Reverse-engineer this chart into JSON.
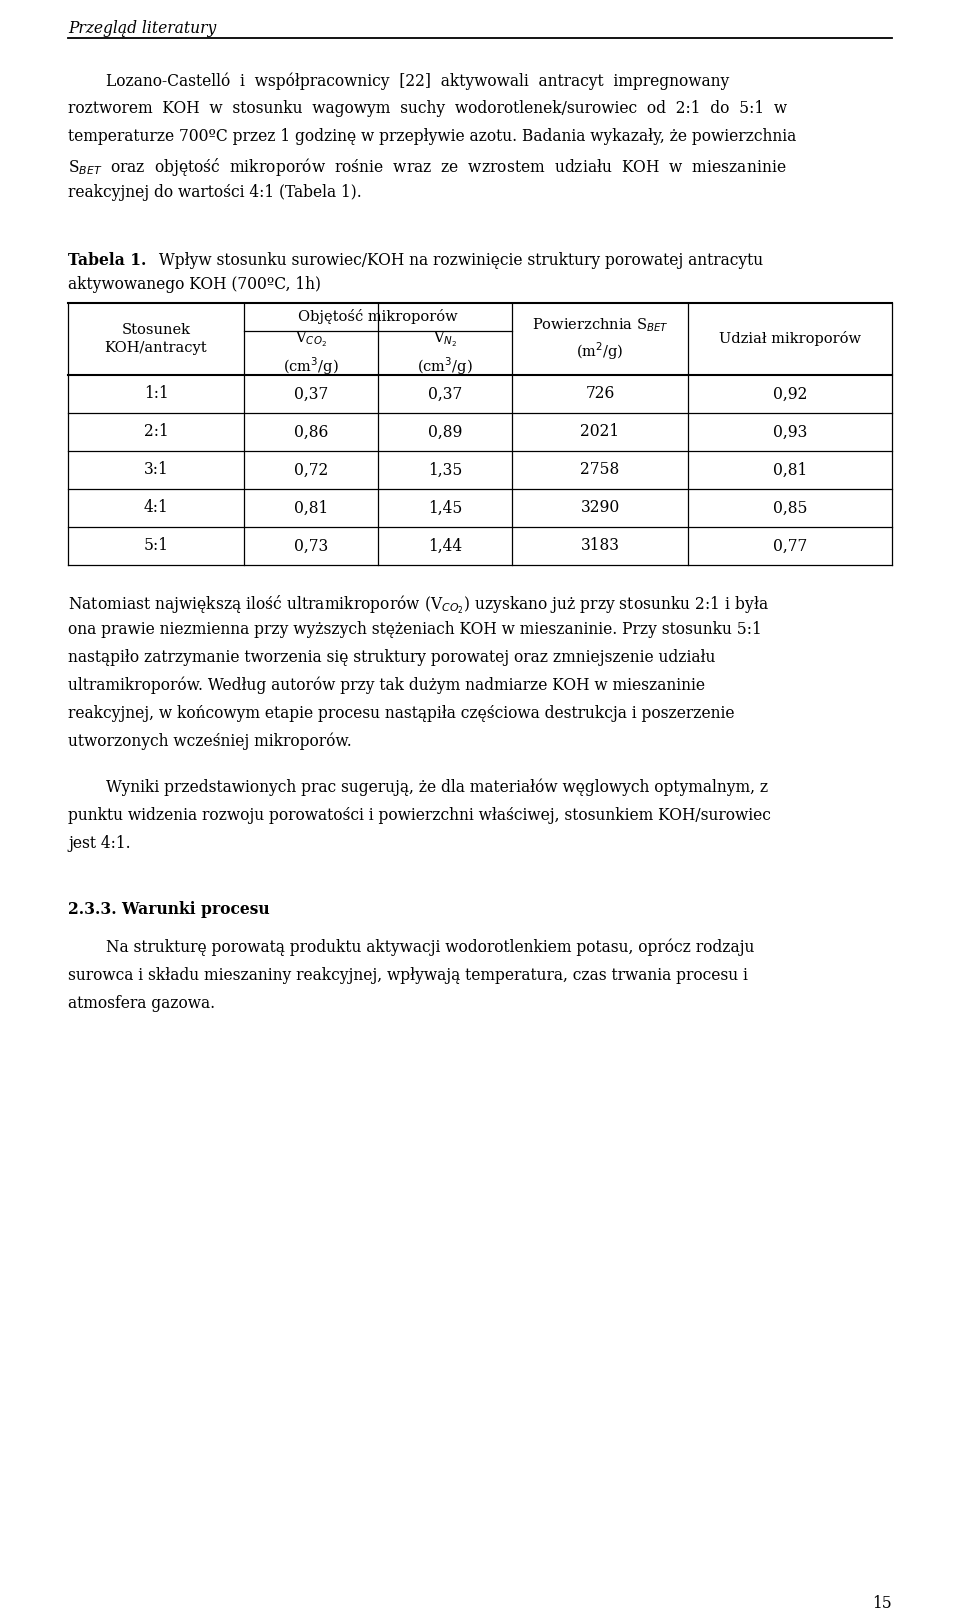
{
  "header": "Przegląd literatury",
  "page_number": "15",
  "table_label_bold": "Tabela 1.",
  "table_label_rest": " Wpływ stosunku surowiec/KOH na rozwinięcie struktury porowatej antracytu",
  "table_label_rest2": "aktywowanego KOH (700ºC, 1h)",
  "table_rows": [
    [
      "1:1",
      "0,37",
      "0,37",
      "726",
      "0,92"
    ],
    [
      "2:1",
      "0,86",
      "0,89",
      "2021",
      "0,93"
    ],
    [
      "3:1",
      "0,72",
      "1,35",
      "2758",
      "0,81"
    ],
    [
      "4:1",
      "0,81",
      "1,45",
      "3290",
      "0,85"
    ],
    [
      "5:1",
      "0,73",
      "1,44",
      "3183",
      "0,77"
    ]
  ],
  "bg_color": "#ffffff",
  "text_color": "#000000"
}
